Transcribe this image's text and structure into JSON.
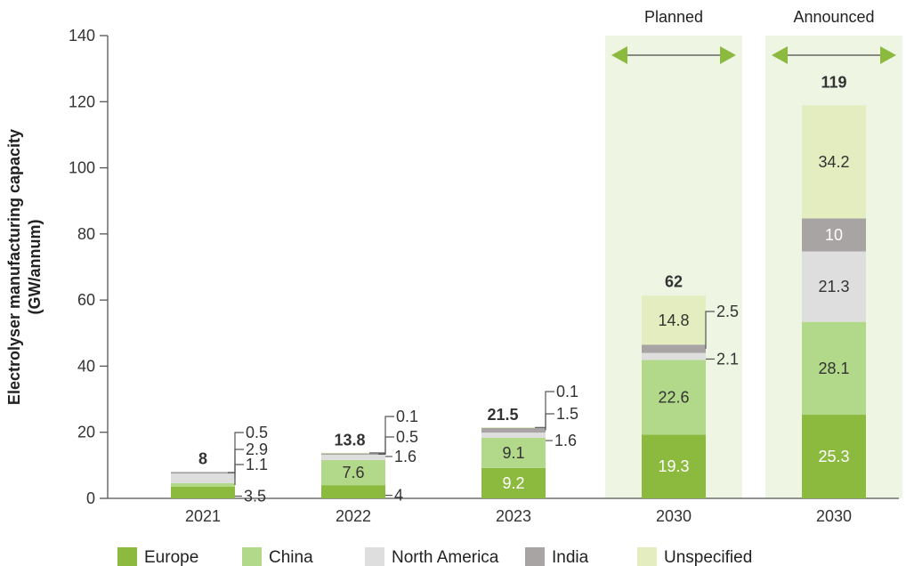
{
  "chart_data": {
    "type": "bar",
    "stacked": true,
    "categories": [
      "2021",
      "2022",
      "2023",
      "2030",
      "2030"
    ],
    "ylabel_lines": [
      "Electrolyser manufacturing capacity",
      "(GW/annum)"
    ],
    "ylim": [
      0,
      140
    ],
    "yticks": [
      0,
      20,
      40,
      60,
      80,
      100,
      120,
      140
    ],
    "series": [
      {
        "name": "Europe",
        "color": "#8cba3f",
        "values": [
          3.5,
          4,
          9.2,
          19.3,
          25.3
        ]
      },
      {
        "name": "China",
        "color": "#b2d98a",
        "values": [
          1.1,
          7.6,
          9.1,
          22.6,
          28.1
        ]
      },
      {
        "name": "North America",
        "color": "#dedede",
        "values": [
          2.9,
          1.6,
          1.6,
          2.1,
          21.3
        ]
      },
      {
        "name": "India",
        "color": "#a8a4a4",
        "values": [
          0.5,
          0.5,
          1.5,
          2.5,
          10
        ]
      },
      {
        "name": "Unspecified",
        "color": "#e3edbf",
        "values": [
          0,
          0.1,
          0.1,
          14.8,
          34.2
        ]
      }
    ],
    "totals": [
      "8",
      "13.8",
      "21.5",
      "62",
      "119"
    ],
    "segment_labels": [
      [
        "3.5",
        "1.1",
        "2.9",
        "0.5",
        ""
      ],
      [
        "4",
        "7.6",
        "1.6",
        "0.5",
        "0.1"
      ],
      [
        "9.2",
        "9.1",
        "1.6",
        "1.5",
        "0.1"
      ],
      [
        "19.3",
        "22.6",
        "2.1",
        "2.5",
        "14.8"
      ],
      [
        "25.3",
        "28.1",
        "21.3",
        "10",
        "34.2"
      ]
    ],
    "scenarios": [
      {
        "label": "Planned",
        "category_index": 3
      },
      {
        "label": "Announced",
        "category_index": 4
      }
    ],
    "legend": {
      "position": "bottom"
    },
    "grid": false,
    "colors": {
      "highlight_bg": "#eef5e2",
      "arrow": "#8cba3f",
      "axis": "#555555"
    }
  }
}
